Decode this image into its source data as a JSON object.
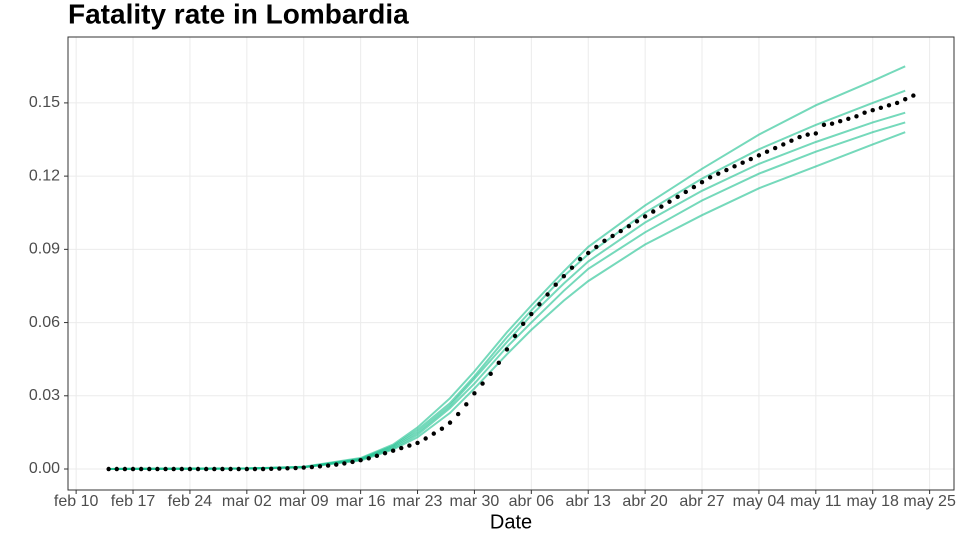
{
  "chart_data": {
    "type": "line",
    "title": "Fatality rate in  Lombardia",
    "x_label": "Date",
    "xlim": [
      "feb 09",
      "may 28"
    ],
    "xticks": [
      "feb 10",
      "feb 17",
      "feb 24",
      "mar 02",
      "mar 09",
      "mar 16",
      "mar 23",
      "mar 30",
      "abr 06",
      "abr 13",
      "abr 20",
      "abr 27",
      "may 04",
      "may 11",
      "may 18",
      "may 25"
    ],
    "ylim": [
      -0.0086,
      0.177
    ],
    "yticks": [
      {
        "value": 0,
        "label": "0.00"
      },
      0.03,
      0.06,
      0.09,
      0.12,
      0.15
    ],
    "grid": true,
    "simulations": {
      "color": "#19bf8e",
      "x": [
        "feb 14",
        "mar 02",
        "mar 09",
        "mar 16",
        "mar 20",
        "mar 23",
        "mar 27",
        "mar 30",
        "abr 03",
        "abr 06",
        "abr 10",
        "abr 13",
        "abr 20",
        "abr 27",
        "may 04",
        "may 11",
        "may 18",
        "may 22"
      ],
      "series": [
        {
          "values": [
            0,
            0.0002,
            0.0007,
            0.0035,
            0.008,
            0.013,
            0.023,
            0.033,
            0.047,
            0.057,
            0.069,
            0.077,
            0.092,
            0.104,
            0.115,
            0.124,
            0.133,
            0.138
          ]
        },
        {
          "values": [
            0,
            0.0002,
            0.0007,
            0.0038,
            0.0085,
            0.014,
            0.025,
            0.035,
            0.05,
            0.06,
            0.073,
            0.082,
            0.097,
            0.11,
            0.121,
            0.13,
            0.138,
            0.142
          ]
        },
        {
          "values": [
            0,
            0.0002,
            0.0008,
            0.004,
            0.009,
            0.015,
            0.026,
            0.037,
            0.052,
            0.063,
            0.076,
            0.085,
            0.101,
            0.114,
            0.125,
            0.134,
            0.142,
            0.146
          ]
        },
        {
          "values": [
            0,
            0.0002,
            0.0008,
            0.0042,
            0.0095,
            0.016,
            0.027,
            0.038,
            0.054,
            0.065,
            0.079,
            0.088,
            0.105,
            0.119,
            0.131,
            0.141,
            0.15,
            0.155
          ]
        },
        {
          "values": [
            0,
            0.0002,
            0.0009,
            0.0045,
            0.01,
            0.017,
            0.029,
            0.04,
            0.056,
            0.067,
            0.081,
            0.091,
            0.108,
            0.123,
            0.137,
            0.149,
            0.159,
            0.165
          ]
        }
      ]
    },
    "observed": {
      "color": "#000000",
      "x": [
        "feb 14",
        "feb 15",
        "feb 16",
        "feb 17",
        "feb 18",
        "feb 19",
        "feb 20",
        "feb 21",
        "feb 22",
        "feb 23",
        "feb 24",
        "feb 25",
        "feb 26",
        "feb 27",
        "feb 28",
        "feb 29",
        "mar 01",
        "mar 02",
        "mar 03",
        "mar 04",
        "mar 05",
        "mar 06",
        "mar 07",
        "mar 08",
        "mar 09",
        "mar 10",
        "mar 11",
        "mar 12",
        "mar 13",
        "mar 14",
        "mar 15",
        "mar 16",
        "mar 17",
        "mar 18",
        "mar 19",
        "mar 20",
        "mar 21",
        "mar 22",
        "mar 23",
        "mar 24",
        "mar 25",
        "mar 26",
        "mar 27",
        "mar 28",
        "mar 29",
        "mar 30",
        "mar 31",
        "abr 01",
        "abr 02",
        "abr 03",
        "abr 04",
        "abr 05",
        "abr 06",
        "abr 07",
        "abr 08",
        "abr 09",
        "abr 10",
        "abr 11",
        "abr 12",
        "abr 13",
        "abr 14",
        "abr 15",
        "abr 16",
        "abr 17",
        "abr 18",
        "abr 19",
        "abr 20",
        "abr 21",
        "abr 22",
        "abr 23",
        "abr 24",
        "abr 25",
        "abr 26",
        "abr 27",
        "abr 28",
        "abr 29",
        "abr 30",
        "may 01",
        "may 02",
        "may 03",
        "may 04",
        "may 05",
        "may 06",
        "may 07",
        "may 08",
        "may 09",
        "may 10",
        "may 11",
        "may 12",
        "may 13",
        "may 14",
        "may 15",
        "may 16",
        "may 17",
        "may 18",
        "may 19",
        "may 20",
        "may 21",
        "may 22",
        "may 23"
      ],
      "values": [
        0,
        0,
        0,
        0,
        0,
        0,
        0,
        0,
        0,
        0,
        0,
        0,
        0,
        0,
        0,
        0,
        0,
        0,
        0,
        0,
        0.0001,
        0.0002,
        0.0003,
        0.0004,
        0.0006,
        0.0008,
        0.0011,
        0.0014,
        0.0018,
        0.0023,
        0.0029,
        0.0036,
        0.0044,
        0.0054,
        0.0065,
        0.0075,
        0.0086,
        0.0096,
        0.0107,
        0.0125,
        0.0145,
        0.0165,
        0.019,
        0.0225,
        0.0265,
        0.031,
        0.035,
        0.039,
        0.0435,
        0.049,
        0.0545,
        0.0595,
        0.0635,
        0.0675,
        0.0715,
        0.0755,
        0.079,
        0.0825,
        0.086,
        0.0885,
        0.091,
        0.0935,
        0.0955,
        0.0975,
        0.0995,
        0.1015,
        0.1035,
        0.1055,
        0.1075,
        0.1095,
        0.1115,
        0.1135,
        0.1155,
        0.1175,
        0.1195,
        0.121,
        0.1225,
        0.124,
        0.1255,
        0.127,
        0.1285,
        0.13,
        0.1315,
        0.133,
        0.1345,
        0.136,
        0.137,
        0.1375,
        0.141,
        0.1415,
        0.1425,
        0.1435,
        0.1445,
        0.146,
        0.147,
        0.148,
        0.149,
        0.15,
        0.1515,
        0.153
      ]
    }
  }
}
